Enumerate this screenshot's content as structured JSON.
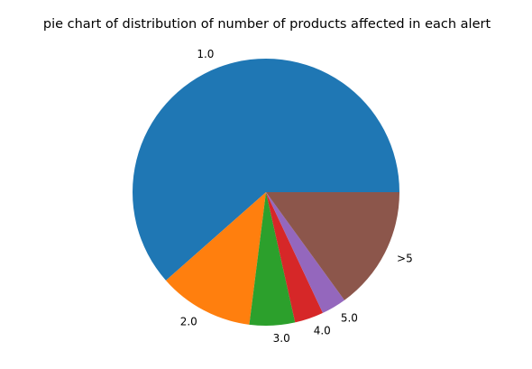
{
  "chart_data": {
    "type": "pie",
    "title": "pie chart of distribution of number of products affected in each alert",
    "categories": [
      "1.0",
      "2.0",
      "3.0",
      "4.0",
      "5.0",
      ">5"
    ],
    "values": [
      61.5,
      11.5,
      5.5,
      3.5,
      3.0,
      15.0
    ],
    "colors": [
      "#1f77b4",
      "#ff7f0e",
      "#2ca02c",
      "#d62728",
      "#9467bd",
      "#8c564b"
    ],
    "start_angle_deg": 0,
    "direction": "counterclockwise"
  }
}
